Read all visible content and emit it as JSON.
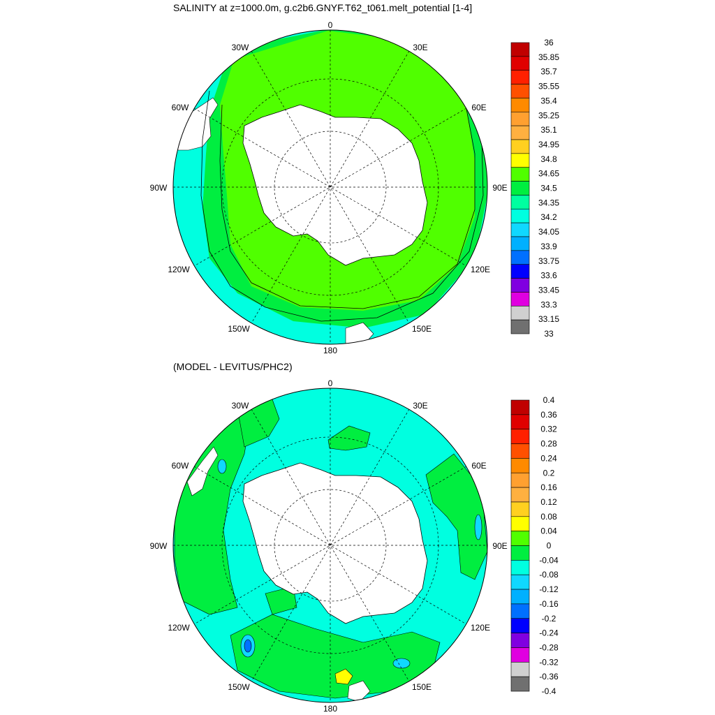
{
  "top_panel": {
    "title": "SALINITY at z=1000.0m, g.c2b6.GNYF.T62_t061.melt_potential [1-4]",
    "longitude_labels": {
      "n": "0",
      "ne": "30E",
      "ene": "60E",
      "e": "90E",
      "ese": "120E",
      "se": "150E",
      "s": "180",
      "sw": "150W",
      "wsw": "120W",
      "w": "90W",
      "wnw": "60W",
      "nw": "30W"
    },
    "colorbar": {
      "labels": [
        "36",
        "35.85",
        "35.7",
        "35.55",
        "35.4",
        "35.25",
        "35.1",
        "34.95",
        "34.8",
        "34.65",
        "34.5",
        "34.35",
        "34.2",
        "34.05",
        "33.9",
        "33.75",
        "33.6",
        "33.45",
        "33.3",
        "33.15",
        "33"
      ],
      "colors": [
        "#c00000",
        "#e00000",
        "#ff2000",
        "#ff5000",
        "#ff8a00",
        "#ffa030",
        "#ffb040",
        "#ffd020",
        "#ffff00",
        "#50ff00",
        "#00ee40",
        "#00ffa0",
        "#00ffe0",
        "#10d8ff",
        "#00b0ff",
        "#0070ff",
        "#0000ff",
        "#8000e0",
        "#e000e0",
        "#d0d0d0",
        "#707070"
      ]
    }
  },
  "bottom_panel": {
    "title": "(MODEL - LEVITUS/PHC2)",
    "longitude_labels": {
      "n": "0",
      "ne": "30E",
      "ene": "60E",
      "e": "90E",
      "ese": "120E",
      "se": "150E",
      "s": "180",
      "sw": "150W",
      "wsw": "120W",
      "w": "90W",
      "wnw": "60W",
      "nw": "30W"
    },
    "colorbar": {
      "labels": [
        "0.4",
        "0.36",
        "0.32",
        "0.28",
        "0.24",
        "0.2",
        "0.16",
        "0.12",
        "0.08",
        "0.04",
        "0",
        "-0.04",
        "-0.08",
        "-0.12",
        "-0.16",
        "-0.2",
        "-0.24",
        "-0.28",
        "-0.32",
        "-0.36",
        "-0.4"
      ],
      "colors": [
        "#c00000",
        "#e00000",
        "#ff2000",
        "#ff5000",
        "#ff8a00",
        "#ffa030",
        "#ffb040",
        "#ffd020",
        "#ffff00",
        "#50ff00",
        "#00ee40",
        "#00ffe0",
        "#10d8ff",
        "#00b0ff",
        "#0070ff",
        "#0000ff",
        "#8000e0",
        "#e000e0",
        "#d0d0d0",
        "#707070"
      ]
    }
  },
  "colors": {
    "green_main": "#50ff00",
    "green_dark": "#00ee40",
    "cyan": "#00ffe0",
    "light_blue": "#10d8ff",
    "blue": "#0070ff",
    "yellow": "#ffff00",
    "land": "#ffffff"
  }
}
